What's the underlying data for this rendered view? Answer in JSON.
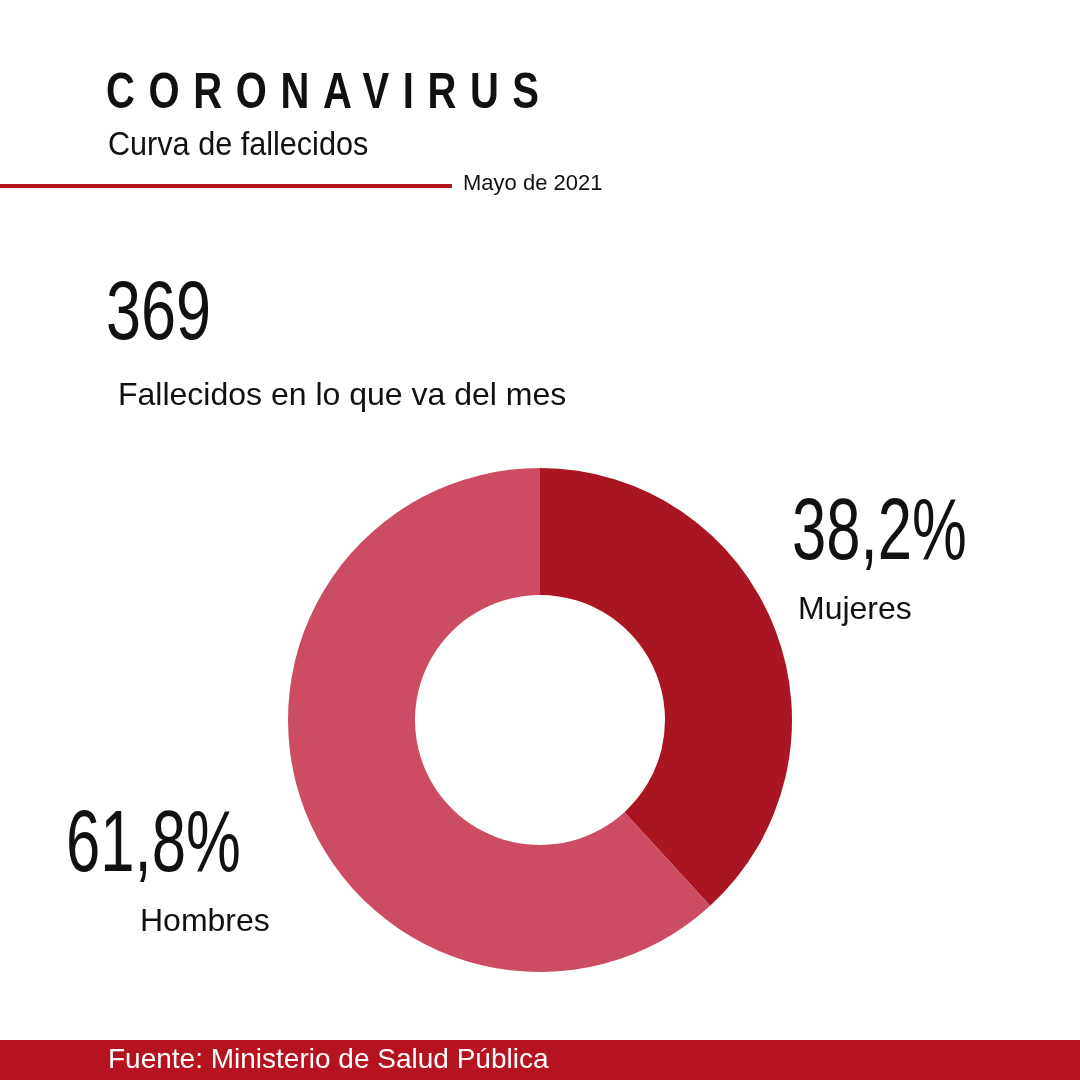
{
  "chart_data": {
    "type": "donut",
    "title": "CORONAVIRUS",
    "subtitle": "Curva de fallecidos",
    "categories": [
      "Mujeres",
      "Hombres"
    ],
    "values": [
      38.2,
      61.8
    ],
    "colors": [
      "#a91520",
      "#cc4d63"
    ],
    "value_labels": [
      "38,2%",
      "61,8%"
    ],
    "annotations": [
      "Mayo de 2021",
      "369",
      "Fallecidos en lo que va del mes",
      "Fuente: Ministerio de Salud Pública"
    ]
  }
}
